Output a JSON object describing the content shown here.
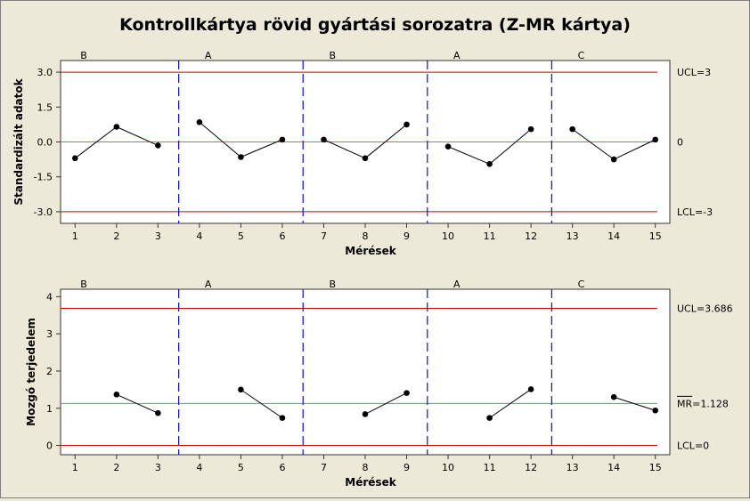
{
  "chart_data": {
    "type": "control-chart",
    "title": "Kontrollkártya rövid gyártási sorozatra (Z-MR kártya)",
    "x": [
      1,
      2,
      3,
      4,
      5,
      6,
      7,
      8,
      9,
      10,
      11,
      12,
      13,
      14,
      15
    ],
    "x_ticks": [
      "1",
      "2",
      "3",
      "4",
      "5",
      "6",
      "7",
      "8",
      "9",
      "10",
      "11",
      "12",
      "13",
      "14",
      "15"
    ],
    "xlabel": "Mérések",
    "groups": [
      {
        "label": "B",
        "start": 1,
        "end": 3
      },
      {
        "label": "A",
        "start": 4,
        "end": 6
      },
      {
        "label": "B",
        "start": 7,
        "end": 9
      },
      {
        "label": "A",
        "start": 10,
        "end": 12
      },
      {
        "label": "C",
        "start": 13,
        "end": 15
      }
    ],
    "panels": [
      {
        "ylabel": "Standardizált adatok",
        "ylim": [
          -3.5,
          3.5
        ],
        "y_ticks": [
          {
            "value": 3,
            "label": "3.0"
          },
          {
            "value": 1.5,
            "label": "1.5"
          },
          {
            "value": 0,
            "label": "0.0"
          },
          {
            "value": -1.5,
            "label": "-1.5"
          },
          {
            "value": -3,
            "label": "-3.0"
          }
        ],
        "series": [
          {
            "values": [
              -0.7,
              0.65,
              -0.15,
              0.85,
              -0.65,
              0.1,
              0.1,
              -0.7,
              0.75,
              -0.2,
              -0.95,
              0.55,
              0.55,
              -0.75,
              0.1
            ]
          }
        ],
        "limits": [
          {
            "value": 3,
            "label": "UCL=3",
            "color": "#cc0000"
          },
          {
            "value": 0,
            "label": "0",
            "color": "#22cc22"
          },
          {
            "value": -3,
            "label": "LCL=-3",
            "color": "#cc0000"
          }
        ]
      },
      {
        "ylabel": "Mozgó terjedelem",
        "ylim": [
          -0.25,
          4.2
        ],
        "y_ticks": [
          {
            "value": 4,
            "label": "4"
          },
          {
            "value": 3,
            "label": "3"
          },
          {
            "value": 2,
            "label": "2"
          },
          {
            "value": 1,
            "label": "1"
          },
          {
            "value": 0,
            "label": "0"
          }
        ],
        "series": [
          {
            "values": [
              null,
              1.37,
              0.87,
              null,
              1.5,
              0.74,
              null,
              0.84,
              1.41,
              null,
              0.74,
              1.51,
              null,
              1.3,
              0.94
            ]
          }
        ],
        "limits": [
          {
            "value": 3.686,
            "label": "UCL=3.686",
            "color": "#cc0000"
          },
          {
            "value": 1.128,
            "label_bar": "MR",
            "label": "=1.128",
            "color": "#22cc22"
          },
          {
            "value": 0,
            "label": "LCL=0",
            "color": "#cc0000"
          }
        ]
      }
    ]
  }
}
